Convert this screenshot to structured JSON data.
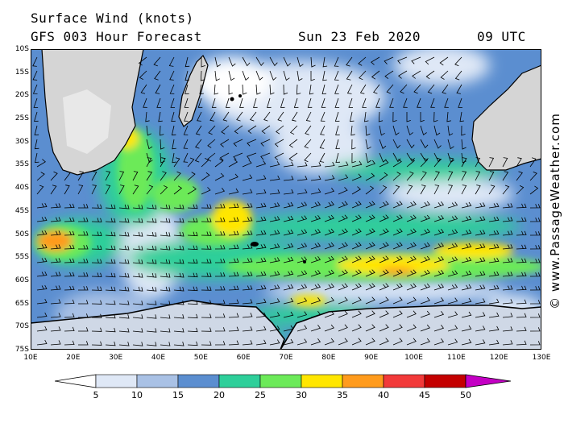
{
  "header": {
    "title": "Surface Wind (knots)",
    "subtitle": "GFS 003 Hour Forecast",
    "date": "Sun 23 Feb 2020",
    "time": "09 UTC"
  },
  "credit": "© www.PassageWeather.com",
  "map": {
    "lon_range": [
      10,
      130
    ],
    "lat_range": [
      -10,
      -75
    ],
    "lat_labels": [
      "10S",
      "15S",
      "20S",
      "25S",
      "30S",
      "35S",
      "40S",
      "45S",
      "50S",
      "55S",
      "60S",
      "65S",
      "70S",
      "75S"
    ],
    "lon_labels": [
      "10E",
      "20E",
      "30E",
      "40E",
      "50E",
      "60E",
      "70E",
      "80E",
      "90E",
      "100E",
      "110E",
      "120E",
      "130E"
    ]
  },
  "colorbar": {
    "labels": [
      "5",
      "10",
      "15",
      "20",
      "25",
      "30",
      "35",
      "40",
      "45",
      "50"
    ],
    "colors": [
      "#ffffff",
      "#dfe8f6",
      "#a9c1e5",
      "#5b8ed0",
      "#2ecf9a",
      "#6cea59",
      "#ffe600",
      "#ff9b1d",
      "#f23a3a",
      "#c40000",
      "#c400c4"
    ]
  }
}
